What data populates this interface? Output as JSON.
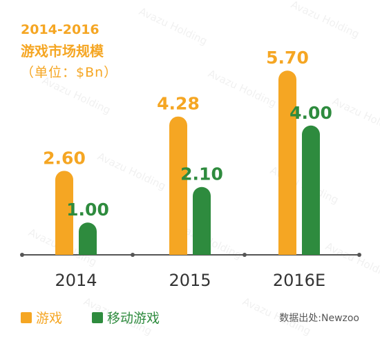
{
  "chart_data": {
    "type": "bar",
    "title_line1": "2014-2016",
    "title_line2": "游戏市场规模",
    "unit_label": "（单位：$Bn）",
    "categories": [
      "2014",
      "2015",
      "2016E"
    ],
    "series": [
      {
        "name": "游戏",
        "values": [
          2.6,
          4.28,
          5.7
        ],
        "labels": [
          "2.60",
          "4.28",
          "5.70"
        ],
        "color": "#f5a623"
      },
      {
        "name": "移动游戏",
        "values": [
          1.0,
          2.1,
          4.0
        ],
        "labels": [
          "1.00",
          "2.10",
          "4.00"
        ],
        "color": "#2e8b3e"
      }
    ],
    "ylim": [
      0,
      6
    ],
    "grid": false,
    "legend_position": "bottom-left"
  },
  "source_text": "数据出处:Newzoo",
  "watermark_text": "Avazu Holding"
}
